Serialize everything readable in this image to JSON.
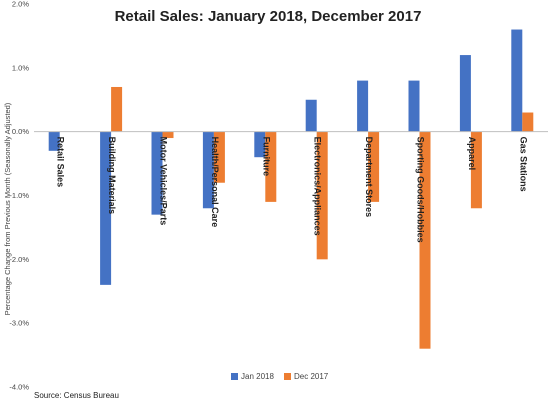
{
  "chart_data": {
    "type": "bar",
    "title": "Retail Sales: January 2018, December 2017",
    "ylabel": "Percentage Change from Previous Month (Seasonally Adjusted)",
    "source": "Source: Census Bureau",
    "ylim": [
      -4.0,
      2.0
    ],
    "yticks": [
      2.0,
      1.0,
      0.0,
      -1.0,
      -2.0,
      -3.0,
      -4.0
    ],
    "ytick_labels": [
      "2.0%",
      "1.0%",
      "0.0%",
      "-1.0%",
      "-2.0%",
      "-3.0%",
      "-4.0%"
    ],
    "categories": [
      "Retail Sales",
      "Building Materials",
      "Motor Vehicles/Parts",
      "Health/Personal Care",
      "Furniture",
      "Electronics/Appliances",
      "Department Stores",
      "Sporting Goods/Hobbies",
      "Apparel",
      "Gas Stations"
    ],
    "series": [
      {
        "name": "Jan  2018",
        "color": "#4472C4",
        "values": [
          -0.3,
          -2.4,
          -1.3,
          -1.2,
          -0.4,
          0.5,
          0.8,
          0.8,
          1.2,
          1.6
        ]
      },
      {
        "name": "Dec 2017",
        "color": "#ED7D31",
        "values": [
          0.0,
          0.7,
          -0.1,
          -0.8,
          -1.1,
          -2.0,
          -1.1,
          -3.4,
          -1.2,
          0.3
        ]
      }
    ],
    "grid": false,
    "legend": "bottom"
  }
}
